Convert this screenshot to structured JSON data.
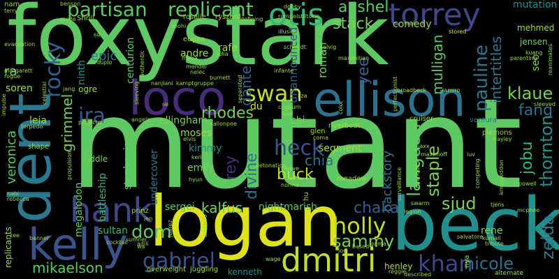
{
  "words": [
    {
      "id": "foxystark",
      "text": "foxystark",
      "color": "#5ec962"
    },
    {
      "id": "mutant",
      "text": "mutant",
      "color": "#5ec962"
    },
    {
      "id": "logan",
      "text": "logan",
      "color": "#dde318"
    },
    {
      "id": "beck",
      "text": "beck",
      "color": "#21908d"
    },
    {
      "id": "dent",
      "text": "dent",
      "color": "#2a788e"
    },
    {
      "id": "kelly",
      "text": "kelly",
      "color": "#3b528b"
    },
    {
      "id": "ellison",
      "text": "ellison",
      "color": "#2c728e"
    },
    {
      "id": "loco",
      "text": "loco",
      "color": "#472c7a"
    },
    {
      "id": "dmitri",
      "text": "dmitri",
      "color": "#c2df23"
    },
    {
      "id": "hank",
      "text": "hank",
      "color": "#404688"
    },
    {
      "id": "torrey",
      "text": "torrey",
      "color": "#404688"
    },
    {
      "id": "otis",
      "text": "otis",
      "color": "#35b779"
    },
    {
      "id": "partisan",
      "text": "partisan",
      "color": "#5ec962"
    },
    {
      "id": "replicant",
      "text": "replicant",
      "color": "#5ec962"
    },
    {
      "id": "rocky",
      "text": "rocky",
      "color": "#355f8d"
    },
    {
      "id": "heck",
      "text": "heck",
      "color": "#3b528b"
    },
    {
      "id": "swan",
      "text": "swan",
      "color": "#c2df23"
    },
    {
      "id": "rhodes",
      "text": "rhodes",
      "color": "#7ad151"
    },
    {
      "id": "gabriel",
      "text": "gabriel",
      "color": "#3b528b"
    },
    {
      "id": "holly",
      "text": "holly",
      "color": "#c2df23"
    },
    {
      "id": "sammy",
      "text": "sammy",
      "color": "#7ad151"
    },
    {
      "id": "khan",
      "text": "khan",
      "color": "#404688"
    },
    {
      "id": "nicole",
      "text": "nicole",
      "color": "#2c728e"
    },
    {
      "id": "pauline",
      "text": "pauline",
      "color": "#2a788e"
    },
    {
      "id": "langdon",
      "text": "langdon",
      "color": "#5ec962"
    },
    {
      "id": "chaka",
      "text": "chaka",
      "color": "#355f8d"
    },
    {
      "id": "dom",
      "text": "dom",
      "color": "#5ec962"
    },
    {
      "id": "kalfus",
      "text": "kalfus",
      "color": "#7ad151"
    },
    {
      "id": "ira",
      "text": "ira",
      "color": "#38588c"
    },
    {
      "id": "klaue",
      "text": "klaue",
      "color": "#7ad151"
    },
    {
      "id": "fang",
      "text": "fang",
      "color": "#2c728e"
    },
    {
      "id": "veronica",
      "text": "veronica",
      "color": "#5ec962"
    },
    {
      "id": "anshel",
      "text": "anshel",
      "color": "#5ec962"
    },
    {
      "id": "stack",
      "text": "stack",
      "color": "#7ad151"
    },
    {
      "id": "mikaelson",
      "text": "mikaelson",
      "color": "#5ec962"
    },
    {
      "id": "jobu",
      "text": "jobu",
      "color": "#35b779"
    },
    {
      "id": "zelda",
      "text": "zelda",
      "color": "#2a788e"
    },
    {
      "id": "thornton",
      "text": "thornton",
      "color": "#21908d"
    },
    {
      "id": "mutation",
      "text": "mutation",
      "color": "#21908d"
    },
    {
      "id": "staple",
      "text": "staple",
      "color": "#7ad151"
    },
    {
      "id": "sjud",
      "text": "sjud",
      "color": "#7ad151"
    },
    {
      "id": "buck",
      "text": "buck",
      "color": "#c2df23"
    },
    {
      "id": "chia",
      "text": "chia",
      "color": "#2c728e"
    },
    {
      "id": "divine",
      "text": "divine",
      "color": "#2c728e"
    },
    {
      "id": "rey",
      "text": "rey",
      "color": "#472c7a"
    },
    {
      "id": "dante",
      "text": "dante",
      "color": "#355f8d"
    },
    {
      "id": "yee",
      "text": "yee",
      "color": "#355f8d"
    },
    {
      "id": "mulligan",
      "text": "mulligan",
      "color": "#5ec962"
    },
    {
      "id": "intertitles",
      "text": "intertitles",
      "color": "#2a788e"
    },
    {
      "id": "backstory",
      "text": "backstory",
      "color": "#2c728e"
    },
    {
      "id": "segment",
      "text": "segment",
      "color": "#9fda3a"
    },
    {
      "id": "roman",
      "text": "roman",
      "color": "#7ad151"
    },
    {
      "id": "unannounced",
      "text": "unannounced",
      "color": "#355f8d"
    },
    {
      "id": "comedy",
      "text": "comedy",
      "color": "#9fda3a"
    },
    {
      "id": "grimmel",
      "text": "grimmel",
      "color": "#7ad151"
    },
    {
      "id": "ellingham",
      "text": "ellingham",
      "color": "#7ad151"
    },
    {
      "id": "moses",
      "text": "moses",
      "color": "#9fda3a"
    },
    {
      "id": "kimmy",
      "text": "kimmy",
      "color": "#21908d"
    },
    {
      "id": "emily",
      "text": "emily",
      "color": "#7ad151"
    },
    {
      "id": "undercover",
      "text": "undercover",
      "color": "#2a788e"
    },
    {
      "id": "stephanie",
      "text": "stephanie",
      "color": "#5ec962"
    },
    {
      "id": "battleship",
      "text": "battleship",
      "color": "#35b779"
    },
    {
      "id": "megalodon",
      "text": "megalodon",
      "color": "#5ec962"
    },
    {
      "id": "riddle",
      "text": "riddle",
      "color": "#7ad151"
    },
    {
      "id": "sultan",
      "text": "sultan",
      "color": "#35b779"
    },
    {
      "id": "sergei",
      "text": "sergei",
      "color": "#5ec962"
    },
    {
      "id": "nightmarish",
      "text": "nightmarish",
      "color": "#5ec962"
    },
    {
      "id": "kenneth",
      "text": "kenneth",
      "color": "#21908d"
    },
    {
      "id": "leia",
      "text": "leia",
      "color": "#9fda3a"
    },
    {
      "id": "centurion",
      "text": "centurion",
      "color": "#5ec962"
    },
    {
      "id": "epic",
      "text": "epic",
      "color": "#2a788e"
    },
    {
      "id": "andre",
      "text": "andre",
      "color": "#9fda3a"
    },
    {
      "id": "rafe",
      "text": "rafe",
      "color": "#9fda3a"
    },
    {
      "id": "ninth",
      "text": "ninth",
      "color": "#21908d"
    },
    {
      "id": "soren",
      "text": "soren",
      "color": "#9fda3a"
    },
    {
      "id": "ra",
      "text": "ra",
      "color": "#5ec962"
    },
    {
      "id": "du",
      "text": "du",
      "color": "#dde318"
    },
    {
      "id": "chi",
      "text": "chi",
      "color": "#7ad151"
    },
    {
      "id": "glen",
      "text": "glen",
      "color": "#9fda3a"
    },
    {
      "id": "henley",
      "text": "henley",
      "color": "#a8db34"
    },
    {
      "id": "rene",
      "text": "rene",
      "color": "#7ad151"
    },
    {
      "id": "alternate",
      "text": "alternate",
      "color": "#9fda3a"
    },
    {
      "id": "sleeve",
      "text": "sleeve",
      "color": "#9fda3a"
    },
    {
      "id": "jensen",
      "text": "jensen",
      "color": "#7ad151"
    },
    {
      "id": "mehmed",
      "text": "mehmed",
      "color": "#9fda3a"
    },
    {
      "id": "seo",
      "text": "seo",
      "color": "#7ad151"
    },
    {
      "id": "plemons",
      "text": "plemons",
      "color": "#9fda3a"
    },
    {
      "id": "hayley",
      "text": "hayley",
      "color": "#9fda3a"
    },
    {
      "id": "ventura",
      "text": "ventura",
      "color": "#2a788e"
    },
    {
      "id": "cruiser",
      "text": "cruiser",
      "color": "#9fda3a"
    },
    {
      "id": "riverboat",
      "text": "riverboat",
      "color": "#a8db34"
    },
    {
      "id": "stored",
      "text": "stored",
      "color": "#dde318"
    },
    {
      "id": "dobby",
      "text": "dobby",
      "color": "#9fda3a"
    },
    {
      "id": "rumpelstiltskin",
      "text": "rumpelstiltskin",
      "color": "#9fda3a"
    },
    {
      "id": "illusion",
      "text": "illusion",
      "color": "#9fda3a"
    },
    {
      "id": "defining",
      "text": "defining",
      "color": "#9fda3a"
    },
    {
      "id": "ryszard",
      "text": "ryszard",
      "color": "#9fda3a"
    },
    {
      "id": "rosalie",
      "text": "rosalie",
      "color": "#9fda3a"
    },
    {
      "id": "schmidt",
      "text": "schmidt",
      "color": "#9fda3a"
    },
    {
      "id": "selvig",
      "text": "selvig",
      "color": "#9fda3a"
    },
    {
      "id": "maximilian",
      "text": "maximilian",
      "color": "#9fda3a"
    },
    {
      "id": "parenting",
      "text": "parenting",
      "color": "#9fda3a"
    },
    {
      "id": "broadbeck",
      "text": "broadbeck",
      "color": "#bddf26"
    },
    {
      "id": "ramiro",
      "text": "ramiro",
      "color": "#9fda3a"
    },
    {
      "id": "perfectionist",
      "text": "perfectionist",
      "color": "#9fda3a"
    },
    {
      "id": "nam",
      "text": "nam",
      "color": "#9fda3a"
    },
    {
      "id": "terry",
      "text": "terry",
      "color": "#9fda3a"
    },
    {
      "id": "margarett",
      "text": "margarett",
      "color": "#9fda3a"
    },
    {
      "id": "evacuation",
      "text": "evacuation",
      "color": "#9fda3a"
    },
    {
      "id": "rogue",
      "text": "rogue",
      "color": "#9fda3a"
    },
    {
      "id": "benson",
      "text": "benson",
      "color": "#9fda3a"
    },
    {
      "id": "mode",
      "text": "mode",
      "color": "#9fda3a"
    },
    {
      "id": "shrill",
      "text": "Shrill",
      "color": "#9fda3a"
    },
    {
      "id": "sq",
      "text": "sq",
      "color": "#9fda3a"
    },
    {
      "id": "duplo",
      "text": "duplo",
      "color": "#9fda3a"
    },
    {
      "id": "eugen",
      "text": "eugen",
      "color": "#9fda3a"
    },
    {
      "id": "julia",
      "text": "julia",
      "color": "#9fda3a"
    },
    {
      "id": "mana",
      "text": "mana",
      "color": "#9fda3a"
    },
    {
      "id": "mendel",
      "text": "mendel",
      "color": "#9fda3a"
    },
    {
      "id": "nelec",
      "text": "nelec",
      "color": "#9fda3a"
    },
    {
      "id": "nanjiani",
      "text": "nanjiani",
      "color": "#9fda3a"
    },
    {
      "id": "kamptgruppe",
      "text": "kamptgruppe",
      "color": "#9fda3a"
    },
    {
      "id": "burnett",
      "text": "burnett",
      "color": "#9fda3a"
    },
    {
      "id": "ogre",
      "text": "ogre",
      "color": "#9fda3a"
    },
    {
      "id": "jang",
      "text": "jang",
      "color": "#9fda3a"
    },
    {
      "id": "sleeving",
      "text": "sleeving",
      "color": "#9fda3a"
    },
    {
      "id": "celestial",
      "text": "celestial",
      "color": "#9fda3a"
    },
    {
      "id": "impulse",
      "text": "impulse",
      "color": "#9fda3a"
    },
    {
      "id": "projector",
      "text": "projector",
      "color": "#9fda3a"
    },
    {
      "id": "angela",
      "text": "angela",
      "color": "#9fda3a"
    },
    {
      "id": "vallon",
      "text": "vallon",
      "color": "#9fda3a"
    },
    {
      "id": "poe",
      "text": "poe",
      "color": "#9fda3a"
    },
    {
      "id": "cogburn",
      "text": "cogburn",
      "color": "#9fda3a"
    },
    {
      "id": "laur",
      "text": "laur",
      "color": "#9fda3a"
    },
    {
      "id": "infante",
      "text": "infante",
      "color": "#9fda3a"
    },
    {
      "id": "separated",
      "text": "separated",
      "color": "#9fda3a"
    },
    {
      "id": "se",
      "text": "se",
      "color": "#9fda3a"
    },
    {
      "id": "elvis",
      "text": "elvis",
      "color": "#9fda3a"
    },
    {
      "id": "keri",
      "text": "keri",
      "color": "#9fda3a"
    },
    {
      "id": "hyun",
      "text": "hyun",
      "color": "#9fda3a"
    },
    {
      "id": "propulsion",
      "text": "propulsion",
      "color": "#9fda3a"
    },
    {
      "id": "shape",
      "text": "shape",
      "color": "#9fda3a"
    },
    {
      "id": "torpedo",
      "text": "torpedo",
      "color": "#9fda3a"
    },
    {
      "id": "rebecca",
      "text": "rebecca",
      "color": "#9fda3a"
    },
    {
      "id": "nabi",
      "text": "nabi",
      "color": "#9fda3a"
    },
    {
      "id": "zee",
      "text": "zee",
      "color": "#9fda3a"
    },
    {
      "id": "banner",
      "text": "banner",
      "color": "#9fda3a"
    },
    {
      "id": "replicants",
      "text": "replicants",
      "color": "#9fda3a"
    },
    {
      "id": "cocktail",
      "text": "cocktail",
      "color": "#9fda3a"
    },
    {
      "id": "prinz",
      "text": "prinz",
      "color": "#9fda3a"
    },
    {
      "id": "jen",
      "text": "jen",
      "color": "#9fda3a"
    },
    {
      "id": "adili",
      "text": "adili",
      "color": "#9fda3a"
    },
    {
      "id": "sumner",
      "text": "sumner",
      "color": "#9fda3a"
    },
    {
      "id": "wa",
      "text": "wa",
      "color": "#9fda3a"
    },
    {
      "id": "overweight",
      "text": "overweight",
      "color": "#9fda3a"
    },
    {
      "id": "juggling",
      "text": "juggling",
      "color": "#9fda3a"
    },
    {
      "id": "juarez",
      "text": "juarez",
      "color": "#9fda3a"
    },
    {
      "id": "diablero",
      "text": "diablero",
      "color": "#9fda3a"
    },
    {
      "id": "wage",
      "text": "wage",
      "color": "#9fda3a"
    },
    {
      "id": "joo",
      "text": "joo",
      "color": "#9fda3a"
    },
    {
      "id": "based",
      "text": "based",
      "color": "#9fda3a"
    },
    {
      "id": "gama",
      "text": "gama",
      "color": "#9fda3a"
    },
    {
      "id": "reggie",
      "text": "reggie",
      "color": "#9fda3a"
    },
    {
      "id": "described",
      "text": "described",
      "color": "#9fda3a"
    },
    {
      "id": "nya",
      "text": "nya",
      "color": "#9fda3a"
    },
    {
      "id": "salvatore",
      "text": "salvatore",
      "color": "#9fda3a"
    },
    {
      "id": "kumail",
      "text": "kumail",
      "color": "#9fda3a"
    },
    {
      "id": "tribute",
      "text": "tribute",
      "color": "#9fda3a"
    },
    {
      "id": "legion",
      "text": "legion",
      "color": "#9fda3a"
    },
    {
      "id": "swarm",
      "text": "swarm",
      "color": "#9fda3a"
    },
    {
      "id": "surveillance",
      "text": "surveillance",
      "color": "#9fda3a"
    },
    {
      "id": "hilarious",
      "text": "hilarious",
      "color": "#9fda3a"
    },
    {
      "id": "jaxx",
      "text": "jaxx",
      "color": "#9fda3a"
    },
    {
      "id": "maximoff",
      "text": "maximoff",
      "color": "#9fda3a"
    },
    {
      "id": "competing",
      "text": "competing",
      "color": "#9fda3a"
    },
    {
      "id": "armageddon",
      "text": "armageddon",
      "color": "#9fda3a"
    },
    {
      "id": "luv",
      "text": "luv",
      "color": "#9fda3a"
    },
    {
      "id": "tjens",
      "text": "tjens",
      "color": "#9fda3a"
    },
    {
      "id": "powell",
      "text": "powell",
      "color": "#9fda3a"
    },
    {
      "id": "mcphee",
      "text": "mcphee",
      "color": "#9fda3a"
    },
    {
      "id": "meadow",
      "text": "meadow",
      "color": "#9fda3a"
    },
    {
      "id": "norma",
      "text": "norma",
      "color": "#9fda3a"
    },
    {
      "id": "coma",
      "text": "coma",
      "color": "#9fda3a"
    },
    {
      "id": "hu",
      "text": "hu",
      "color": "#9fda3a"
    },
    {
      "id": "detonation",
      "text": "detonation",
      "color": "#9fda3a"
    },
    {
      "id": "liza",
      "text": "liza",
      "color": "#9fda3a"
    },
    {
      "id": "color",
      "text": "color",
      "color": "#9fda3a"
    },
    {
      "id": "roohi",
      "text": "roohi",
      "color": "#9fda3a"
    },
    {
      "id": "authentic",
      "text": "authentic",
      "color": "#9fda3a"
    },
    {
      "id": "kuang",
      "text": "kuang",
      "color": "#9fda3a"
    },
    {
      "id": "reanimates",
      "text": "reanimates",
      "color": "#9fda3a"
    },
    {
      "id": "sleeved",
      "text": "sleeved",
      "color": "#9fda3a"
    }
  ]
}
